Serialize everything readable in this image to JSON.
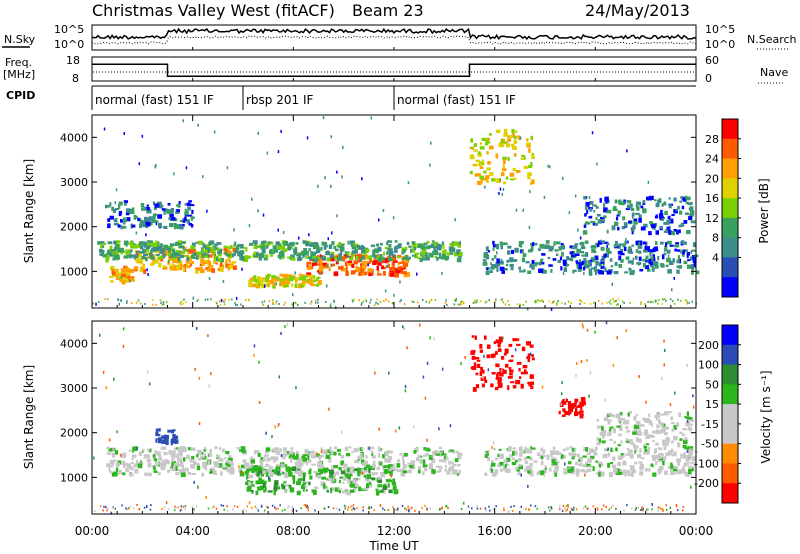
{
  "header": {
    "station": "Christmas Valley West (fitACF)",
    "beam": "Beam 23",
    "date": "24/May/2013"
  },
  "strips": {
    "nsky_label": "N.Sky",
    "nsky_ticks": [
      "10^5",
      "10^0"
    ],
    "nsearch_label": "N.Search",
    "nsearch_ticks": [
      "10^5",
      "10^0"
    ],
    "freq_label": "Freq.",
    "freq_unit": "[MHz]",
    "freq_ticks": [
      "18",
      "8"
    ],
    "nave_label": "Nave",
    "nave_ticks": [
      "60",
      "0"
    ],
    "cpid_label": "CPID",
    "cpid_segments": [
      {
        "label": "normal (fast) 151 IF",
        "start_hour": 0,
        "end_hour": 6
      },
      {
        "label": "rbsp 201 IF",
        "start_hour": 6,
        "end_hour": 12
      },
      {
        "label": "normal (fast) 151 IF",
        "start_hour": 12,
        "end_hour": 24
      }
    ],
    "freq_series": [
      {
        "start_hour": 0,
        "end_hour": 3,
        "level": 15
      },
      {
        "start_hour": 3,
        "end_hour": 15,
        "level": 10
      },
      {
        "start_hour": 15,
        "end_hour": 24,
        "level": 15
      }
    ]
  },
  "chart_data": [
    {
      "type": "heatmap",
      "ylabel": "Slant Range [km]",
      "xlabel": "Time UT",
      "x_ticks": [
        "00:00",
        "04:00",
        "08:00",
        "12:00",
        "16:00",
        "20:00",
        "00:00"
      ],
      "xlim": [
        0,
        24
      ],
      "y_ticks": [
        1000,
        2000,
        3000,
        4000
      ],
      "ylim": [
        180,
        4500
      ],
      "colorbar": {
        "label": "Power [dB]",
        "ticks": [
          28,
          24,
          20,
          16,
          12,
          8,
          4
        ],
        "colors": [
          "#ff0000",
          "#ff5a00",
          "#ffa000",
          "#e0d000",
          "#7bd000",
          "#3aa060",
          "#3c8c8c",
          "#2850b4",
          "#0000ff"
        ]
      },
      "echo_regions": [
        {
          "t0": 0.6,
          "t1": 1.6,
          "r0": 800,
          "r1": 1150,
          "level": 22
        },
        {
          "t0": 1.6,
          "t1": 5.6,
          "r0": 1050,
          "r1": 1550,
          "level": 22
        },
        {
          "t0": 6.2,
          "t1": 9.0,
          "r0": 700,
          "r1": 950,
          "level": 18
        },
        {
          "t0": 8.5,
          "t1": 12.5,
          "r0": 950,
          "r1": 1400,
          "level": 26
        },
        {
          "t0": 15.0,
          "t1": 17.6,
          "r0": 3000,
          "r1": 4200,
          "level": 18
        },
        {
          "t0": 0.2,
          "t1": 14.6,
          "r0": 1300,
          "r1": 1700,
          "level": 10
        },
        {
          "t0": 0.5,
          "t1": 4.0,
          "r0": 2000,
          "r1": 2600,
          "level": 6
        },
        {
          "t0": 15.5,
          "t1": 24,
          "r0": 1000,
          "r1": 1700,
          "level": 6
        },
        {
          "t0": 19.5,
          "t1": 23.8,
          "r0": 1900,
          "r1": 2700,
          "level": 6
        }
      ]
    },
    {
      "type": "heatmap",
      "ylabel": "Slant Range [km]",
      "xlabel": "Time UT",
      "x_ticks": [
        "00:00",
        "04:00",
        "08:00",
        "12:00",
        "16:00",
        "20:00",
        "00:00"
      ],
      "xlim": [
        0,
        24
      ],
      "y_ticks": [
        1000,
        2000,
        3000,
        4000
      ],
      "ylim": [
        180,
        4500
      ],
      "colorbar": {
        "label": "Velocity [m s⁻¹]",
        "ticks": [
          200,
          100,
          50,
          15,
          -15,
          -50,
          -100,
          -200
        ],
        "colors": [
          "#0000ff",
          "#2a4cb4",
          "#2d8c32",
          "#2ab61c",
          "#c8c8c8",
          "#c8c8c8",
          "#ff8c00",
          "#ff5a00",
          "#ff0000"
        ]
      },
      "echo_regions": [
        {
          "t0": 0.5,
          "t1": 14.6,
          "r0": 1100,
          "r1": 1700,
          "level": 0
        },
        {
          "t0": 6.0,
          "t1": 12.0,
          "r0": 700,
          "r1": 1300,
          "level": 30
        },
        {
          "t0": 2.5,
          "t1": 3.3,
          "r0": 1800,
          "r1": 2100,
          "level": 150
        },
        {
          "t0": 15.0,
          "t1": 17.5,
          "r0": 3000,
          "r1": 4200,
          "level": -250
        },
        {
          "t0": 18.5,
          "t1": 19.5,
          "r0": 2400,
          "r1": 2800,
          "level": -250
        },
        {
          "t0": 15.5,
          "t1": 24,
          "r0": 1100,
          "r1": 1700,
          "level": 0
        },
        {
          "t0": 20.0,
          "t1": 23.8,
          "r0": 1700,
          "r1": 2500,
          "level": 0
        }
      ]
    }
  ]
}
